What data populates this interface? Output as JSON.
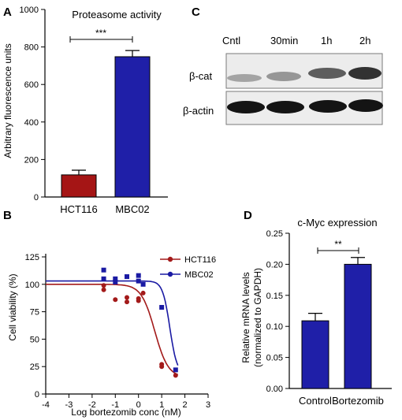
{
  "colors": {
    "hct116": "#a31a1a",
    "mbc02": "#1a1aa3",
    "bar_blue": "#1f1fa8",
    "bar_red": "#a51515"
  },
  "panel_a": {
    "letter": "A",
    "chart_data": {
      "type": "bar",
      "title": "Proteasome activity",
      "ylabel": "Arbitrary fluorescence units",
      "categories": [
        "HCT116",
        "MBC02"
      ],
      "values": [
        118,
        748
      ],
      "errors": [
        25,
        33
      ],
      "colors": [
        "#a51515",
        "#1f1fa8"
      ],
      "ylim": [
        0,
        1000
      ],
      "yticks": [
        "0",
        "200",
        "400",
        "600",
        "800",
        "1000"
      ],
      "significance": "***"
    }
  },
  "panel_b": {
    "letter": "B",
    "chart_data": {
      "type": "scatter",
      "xlabel": "Log bortezomib conc (nM)",
      "ylabel": "Cell viability (%)",
      "xlim": [
        -4,
        3
      ],
      "ylim": [
        0,
        125
      ],
      "xticks": [
        "-4",
        "-3",
        "-2",
        "-1",
        "0",
        "1",
        "2",
        "3"
      ],
      "yticks": [
        "0",
        "25",
        "50",
        "75",
        "100",
        "125"
      ],
      "legend_position": "top-right",
      "series": [
        {
          "name": "HCT116",
          "color": "#a31a1a",
          "marker": "circle",
          "points": [
            [
              -1.5,
              99
            ],
            [
              -1.5,
              95
            ],
            [
              -1.0,
              86
            ],
            [
              -0.5,
              84
            ],
            [
              -0.5,
              88
            ],
            [
              0.0,
              87
            ],
            [
              0.0,
              85
            ],
            [
              0.2,
              92
            ],
            [
              1.0,
              27
            ],
            [
              1.0,
              25
            ],
            [
              1.6,
              17
            ]
          ],
          "fit": {
            "bottom": 15,
            "top": 100,
            "logIC50": 0.7,
            "hill": 1.5
          }
        },
        {
          "name": "MBC02",
          "color": "#1a1aa3",
          "marker": "square",
          "points": [
            [
              -1.5,
              113
            ],
            [
              -1.5,
              105
            ],
            [
              -1.0,
              102
            ],
            [
              -1.0,
              105
            ],
            [
              -0.5,
              107
            ],
            [
              0.0,
              108
            ],
            [
              0.0,
              103
            ],
            [
              0.2,
              100
            ],
            [
              1.0,
              79
            ],
            [
              1.6,
              22
            ]
          ],
          "fit": {
            "bottom": 18,
            "top": 103,
            "logIC50": 1.35,
            "hill": 2.8
          }
        }
      ]
    }
  },
  "panel_c": {
    "letter": "C",
    "lanes": [
      "Cntl",
      "30min",
      "1h",
      "2h"
    ],
    "rows": [
      "β-cat",
      "β-actin"
    ]
  },
  "panel_d": {
    "letter": "D",
    "chart_data": {
      "type": "bar",
      "title": "c-Myc expression",
      "ylabel_line1": "Relative mRNA levels",
      "ylabel_line2": "(normalized to GAPDH)",
      "categories": [
        "Control",
        "Bortezomib"
      ],
      "values": [
        0.109,
        0.2
      ],
      "errors": [
        0.012,
        0.011
      ],
      "colors": [
        "#1f1fa8",
        "#1f1fa8"
      ],
      "ylim": [
        0,
        0.25
      ],
      "yticks": [
        "0.00",
        "0.05",
        "0.10",
        "0.15",
        "0.20",
        "0.25"
      ],
      "significance": "**"
    }
  }
}
